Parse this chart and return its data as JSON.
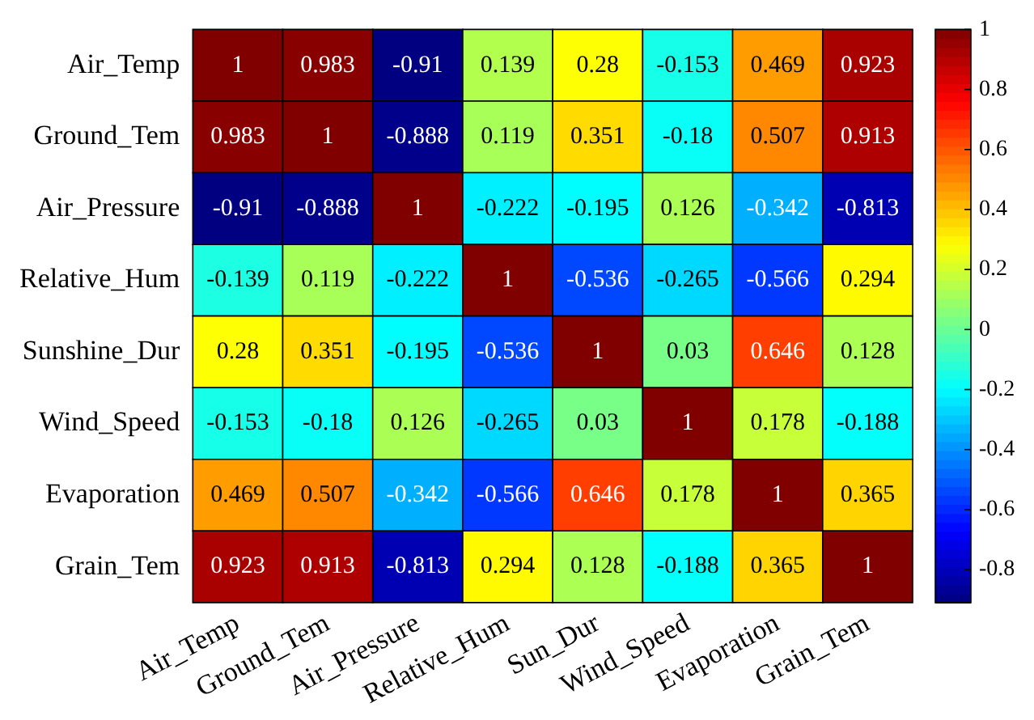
{
  "chart_data": {
    "type": "heatmap",
    "categories": [
      "Air_Temp",
      "Ground_Tem",
      "Air_Pressure",
      "Relative_Hum",
      "Sun_Dur",
      "Wind_Speed",
      "Evaporation",
      "Grain_Tem"
    ],
    "y_categories": [
      "Air_Temp",
      "Ground_Tem",
      "Air_Pressure",
      "Relative_Hum",
      "Sunshine_Dur",
      "Wind_Speed",
      "Evaporation",
      "Grain_Tem"
    ],
    "cells": [
      [
        1,
        0.983,
        -0.91,
        0.139,
        0.28,
        -0.153,
        0.469,
        0.923
      ],
      [
        0.983,
        1,
        -0.888,
        0.119,
        0.351,
        -0.18,
        0.507,
        0.913
      ],
      [
        -0.91,
        -0.888,
        1,
        -0.222,
        -0.195,
        0.126,
        -0.342,
        -0.813
      ],
      [
        -0.139,
        0.119,
        -0.222,
        1,
        -0.536,
        -0.265,
        -0.566,
        0.294
      ],
      [
        0.28,
        0.351,
        -0.195,
        -0.536,
        1,
        0.03,
        0.646,
        0.128
      ],
      [
        -0.153,
        -0.18,
        0.126,
        -0.265,
        0.03,
        1,
        0.178,
        -0.188
      ],
      [
        0.469,
        0.507,
        -0.342,
        -0.566,
        0.646,
        0.178,
        1,
        0.365
      ],
      [
        0.923,
        0.913,
        -0.813,
        0.294,
        0.128,
        -0.188,
        0.365,
        1
      ]
    ],
    "data_labels": true,
    "clim": [
      -0.91,
      1
    ],
    "cticks": [
      -0.8,
      -0.6,
      -0.4,
      -0.2,
      0,
      0.2,
      0.4,
      0.6,
      0.8,
      1
    ]
  }
}
